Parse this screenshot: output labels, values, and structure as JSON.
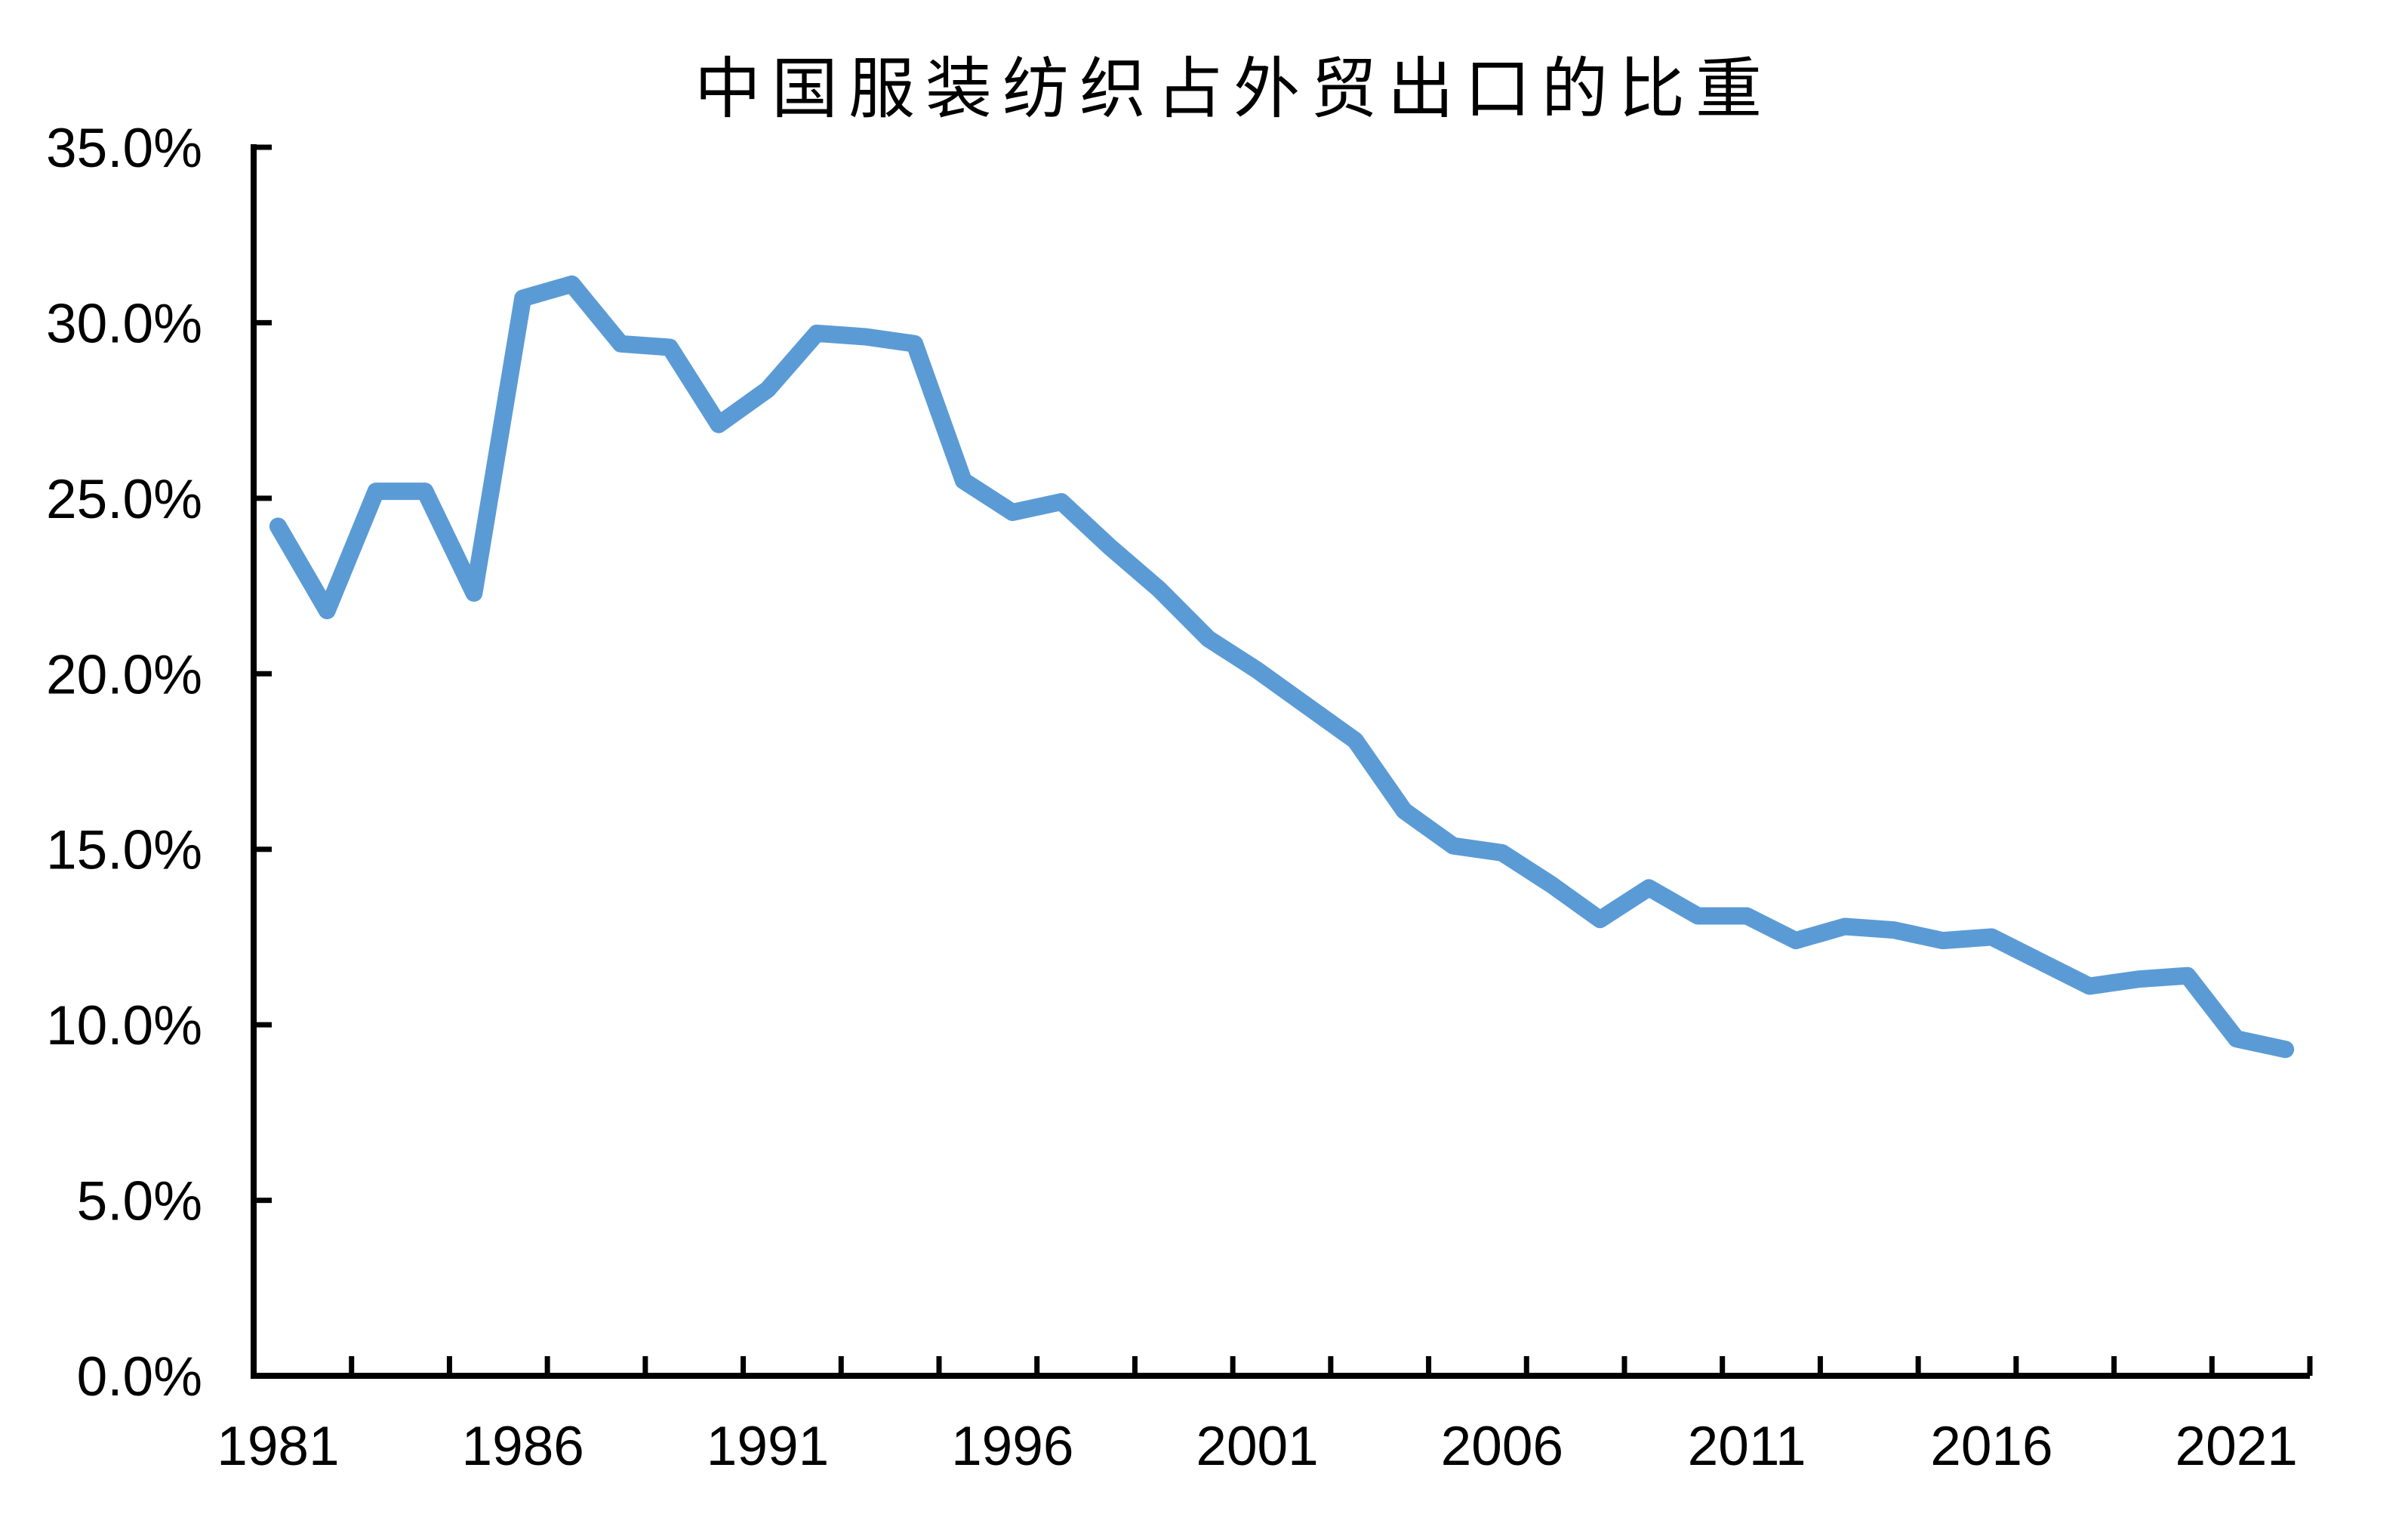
{
  "title": "中国服装纺织占外贸出口的比重",
  "chart_data": {
    "type": "line",
    "title": "中国服装纺织占外贸出口的比重",
    "x": [
      1981,
      1982,
      1983,
      1984,
      1985,
      1986,
      1987,
      1988,
      1989,
      1990,
      1991,
      1992,
      1993,
      1994,
      1995,
      1996,
      1997,
      1998,
      1999,
      2000,
      2001,
      2002,
      2003,
      2004,
      2005,
      2006,
      2007,
      2008,
      2009,
      2010,
      2011,
      2012,
      2013,
      2014,
      2015,
      2016,
      2017,
      2018,
      2019,
      2020,
      2021,
      2022
    ],
    "series": [
      {
        "name": "中国服装纺织占外贸出口的比重",
        "values": [
          24.2,
          21.8,
          25.2,
          25.2,
          22.3,
          30.7,
          31.1,
          29.4,
          29.3,
          27.1,
          28.1,
          29.7,
          29.6,
          29.4,
          25.5,
          24.6,
          24.9,
          23.6,
          22.4,
          21.0,
          20.1,
          19.1,
          18.1,
          16.1,
          15.1,
          14.9,
          14.0,
          13.0,
          13.9,
          13.1,
          13.1,
          12.4,
          12.8,
          12.7,
          12.4,
          12.5,
          11.8,
          11.1,
          11.3,
          11.4,
          9.6,
          9.3
        ]
      }
    ],
    "xlabel": "",
    "ylabel": "",
    "ylim": [
      0,
      35
    ],
    "ytick_step": 5,
    "ytick_labels": [
      "0.0%",
      "5.0%",
      "10.0%",
      "15.0%",
      "20.0%",
      "25.0%",
      "30.0%",
      "35.0%"
    ],
    "ytick_values": [
      0,
      5,
      10,
      15,
      20,
      25,
      30,
      35
    ],
    "xtick_labels": [
      "1981",
      "1986",
      "1991",
      "1996",
      "2001",
      "2006",
      "2011",
      "2016",
      "2021"
    ],
    "xtick_years": [
      1981,
      1986,
      1991,
      1996,
      2001,
      2006,
      2011,
      2016,
      2021
    ],
    "grid": false,
    "legend": "none",
    "line_color": "#5B9BD5",
    "axis_color": "#000000",
    "background_color": "#FFFFFF"
  }
}
